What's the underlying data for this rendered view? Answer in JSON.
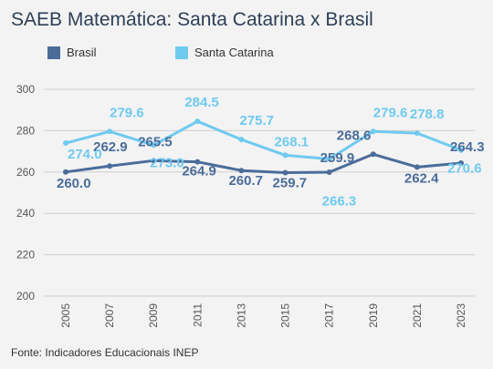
{
  "title": "SAEB Matemática: Santa Catarina x Brasil",
  "source": "Fonte: Indicadores Educacionais INEP",
  "chart_data": {
    "type": "line",
    "title": "SAEB Matemática: Santa Catarina x Brasil",
    "x": [
      "2005",
      "2007",
      "2009",
      "2011",
      "2013",
      "2015",
      "2017",
      "2019",
      "2021",
      "2023"
    ],
    "series": [
      {
        "name": "Brasil",
        "color": "#4a6d9a",
        "values": [
          260.0,
          262.9,
          265.5,
          264.9,
          260.7,
          259.7,
          259.9,
          268.6,
          262.4,
          264.3
        ],
        "labels": [
          "260.0",
          "262.9",
          "265.5",
          "264.9",
          "260.7",
          "259.7",
          "259.9",
          "268.6",
          "262.4",
          "264.3"
        ]
      },
      {
        "name": "Santa Catarina",
        "color": "#6fcaf0",
        "values": [
          274.0,
          279.6,
          273.0,
          284.5,
          275.7,
          268.1,
          266.3,
          279.6,
          278.8,
          270.6
        ],
        "labels": [
          "274.0",
          "279.6",
          "273.0",
          "284.5",
          "275.7",
          "268.1",
          "266.3",
          "279.6",
          "278.8",
          "270.6"
        ]
      }
    ],
    "ylim": [
      200,
      300
    ],
    "yticks": [
      200,
      220,
      240,
      260,
      280,
      300
    ],
    "grid": true,
    "legend": "top-left"
  }
}
